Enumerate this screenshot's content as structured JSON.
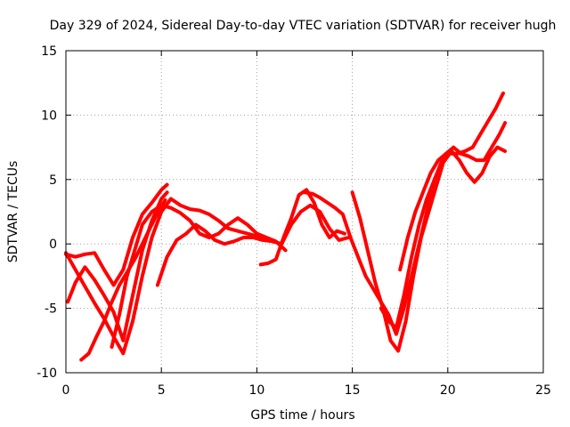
{
  "chart_data": {
    "type": "line",
    "title": "Day 329 of 2024, Sidereal Day-to-day VTEC variation (SDTVAR) for receiver hugh",
    "xlabel": "GPS time / hours",
    "ylabel": "SDTVAR / TECUs",
    "xlim": [
      0,
      25
    ],
    "ylim": [
      -10,
      15
    ],
    "xticks": [
      0,
      5,
      10,
      15,
      20,
      25
    ],
    "yticks": [
      -10,
      -5,
      0,
      5,
      10,
      15
    ],
    "xtick_labels": [
      "0",
      "5",
      "10",
      "15",
      "20",
      "25"
    ],
    "ytick_labels": [
      "-10",
      "-5",
      "0",
      "5",
      "10",
      "15"
    ],
    "grid": true,
    "color": "#ff0000",
    "series": [
      {
        "x": [
          0.0,
          0.5,
          1.0,
          1.5,
          2.0,
          2.5,
          3.0,
          3.5,
          4.0,
          4.5,
          5.0,
          5.5,
          6.0,
          6.5,
          7.0,
          7.5,
          8.0,
          8.5,
          9.0,
          9.5,
          10.0,
          10.5
        ],
        "y": [
          -0.7,
          -2.0,
          -3.3,
          -4.6,
          -5.8,
          -7.2,
          -8.5,
          -6.0,
          -2.5,
          0.5,
          2.5,
          3.5,
          3.0,
          2.7,
          2.6,
          2.3,
          1.8,
          1.2,
          1.0,
          0.8,
          0.6,
          0.3
        ]
      },
      {
        "x": [
          0.0,
          0.5,
          1.0,
          1.5,
          2.0,
          2.5,
          3.0,
          3.5,
          4.0,
          4.5,
          5.0,
          5.3
        ],
        "y": [
          -0.8,
          -1.0,
          -0.8,
          -0.7,
          -2.0,
          -3.2,
          -2.0,
          0.5,
          2.3,
          3.2,
          4.2,
          4.6
        ]
      },
      {
        "x": [
          0.1,
          0.5,
          1.0,
          1.5,
          2.0,
          2.5,
          3.0,
          3.5,
          4.0,
          4.5,
          5.0,
          5.3
        ],
        "y": [
          -4.5,
          -3.0,
          -1.8,
          -2.8,
          -4.0,
          -5.3,
          -7.5,
          -4.0,
          -0.5,
          1.8,
          3.5,
          4.0
        ]
      },
      {
        "x": [
          0.8,
          1.2,
          1.6,
          2.0,
          2.4,
          2.8,
          3.2,
          3.6,
          4.0,
          4.4,
          4.8,
          5.2
        ],
        "y": [
          -9.0,
          -8.5,
          -7.2,
          -6.0,
          -4.5,
          -3.2,
          -2.2,
          -1.2,
          0.0,
          1.2,
          2.4,
          3.4
        ]
      },
      {
        "x": [
          2.4,
          2.8,
          3.2,
          3.6,
          4.0,
          4.5,
          5.0,
          5.5,
          6.0,
          6.5,
          7.0,
          7.5,
          8.0,
          8.5,
          9.0,
          9.5,
          10.0,
          10.5,
          11.0,
          11.5
        ],
        "y": [
          -8.0,
          -5.5,
          -2.5,
          -0.5,
          1.5,
          2.5,
          3.0,
          2.8,
          2.4,
          1.8,
          0.8,
          0.5,
          0.8,
          1.5,
          2.0,
          1.5,
          0.8,
          0.5,
          0.2,
          -0.5
        ]
      },
      {
        "x": [
          4.8,
          5.3,
          5.8,
          6.3,
          6.8,
          7.3,
          7.8,
          8.3,
          8.8,
          9.3,
          9.8,
          10.3,
          10.8,
          11.3,
          11.8,
          12.3,
          12.8,
          13.3,
          13.8,
          14.3,
          14.8
        ],
        "y": [
          -3.2,
          -1.0,
          0.3,
          0.8,
          1.5,
          1.0,
          0.3,
          0.0,
          0.2,
          0.5,
          0.5,
          0.3,
          0.2,
          0.0,
          1.5,
          2.5,
          3.0,
          2.5,
          1.2,
          0.3,
          0.5
        ]
      },
      {
        "x": [
          10.2,
          10.6,
          11.0,
          11.4,
          11.8,
          12.2,
          12.6,
          13.0,
          13.4,
          13.8,
          14.2,
          14.6
        ],
        "y": [
          -1.6,
          -1.5,
          -1.2,
          0.5,
          2.0,
          3.8,
          4.2,
          3.2,
          1.5,
          0.5,
          1.0,
          0.8
        ]
      },
      {
        "x": [
          12.5,
          12.9,
          13.3,
          13.7,
          14.1,
          14.5,
          14.9,
          15.3,
          15.7,
          16.1,
          16.5,
          16.9,
          17.3,
          17.7,
          18.1,
          18.5,
          18.9,
          19.3,
          19.7,
          20.1
        ],
        "y": [
          4.0,
          3.9,
          3.6,
          3.2,
          2.8,
          2.3,
          0.5,
          -1.0,
          -2.5,
          -3.5,
          -4.5,
          -5.5,
          -7.0,
          -5.0,
          -2.5,
          0.0,
          2.5,
          5.0,
          6.5,
          7.0
        ]
      },
      {
        "x": [
          15.0,
          15.4,
          15.8,
          16.2,
          16.6,
          17.0,
          17.4,
          17.8,
          18.2,
          18.6,
          19.0,
          19.4,
          19.8,
          20.2,
          20.6,
          21.0,
          21.4,
          21.8,
          22.2,
          22.6,
          23.0
        ],
        "y": [
          4.0,
          2.0,
          -0.5,
          -3.0,
          -5.0,
          -7.5,
          -8.3,
          -6.0,
          -2.5,
          0.5,
          2.5,
          4.5,
          6.5,
          7.2,
          6.5,
          5.5,
          4.8,
          5.5,
          6.8,
          7.5,
          7.2
        ]
      },
      {
        "x": [
          16.5,
          16.9,
          17.3,
          17.7,
          18.1,
          18.5,
          18.9,
          19.3,
          19.7,
          20.1,
          20.5,
          20.9,
          21.3,
          21.7,
          22.1,
          22.5,
          22.9
        ],
        "y": [
          -5.0,
          -6.0,
          -6.5,
          -4.0,
          -1.0,
          1.5,
          3.5,
          5.0,
          6.2,
          7.0,
          7.0,
          7.2,
          7.5,
          8.5,
          9.5,
          10.5,
          11.7
        ]
      },
      {
        "x": [
          17.5,
          17.9,
          18.3,
          18.7,
          19.1,
          19.5,
          19.9,
          20.3,
          20.7,
          21.1,
          21.5,
          21.9,
          22.3,
          22.7,
          23.0
        ],
        "y": [
          -2.0,
          0.5,
          2.5,
          4.0,
          5.5,
          6.5,
          7.0,
          7.5,
          7.0,
          6.8,
          6.5,
          6.5,
          7.5,
          8.5,
          9.4
        ]
      }
    ]
  }
}
